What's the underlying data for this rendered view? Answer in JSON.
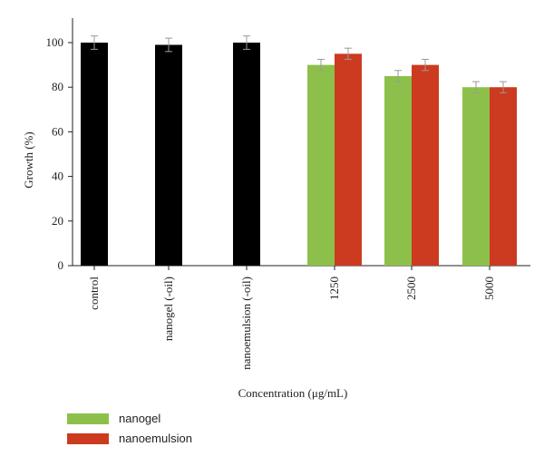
{
  "chart_data": {
    "type": "bar",
    "xlabel": "Concentration (μg/mL)",
    "ylabel": "Growth (%)",
    "ylim": [
      0,
      100
    ],
    "yticks": [
      0,
      20,
      40,
      60,
      80,
      100
    ],
    "categories": [
      "control",
      "nanogel (-oil)",
      "nanoemulsion (-oil)",
      "1250",
      "2500",
      "5000"
    ],
    "single_bars": [
      {
        "category": "control",
        "value": 100,
        "error": 3,
        "color": "#000000"
      },
      {
        "category": "nanogel (-oil)",
        "value": 99,
        "error": 3,
        "color": "#000000"
      },
      {
        "category": "nanoemulsion (-oil)",
        "value": 100,
        "error": 3,
        "color": "#000000"
      }
    ],
    "series": [
      {
        "name": "nanogel",
        "color": "#8dc04a",
        "values": [
          null,
          null,
          null,
          90,
          85,
          80
        ],
        "errors": [
          null,
          null,
          null,
          2.5,
          2.5,
          2.5
        ]
      },
      {
        "name": "nanoemulsion",
        "color": "#cc3a1f",
        "values": [
          null,
          null,
          null,
          95,
          90,
          80
        ],
        "errors": [
          null,
          null,
          null,
          2.5,
          2.5,
          2.5
        ]
      }
    ],
    "legend": {
      "placement": "bottom-left"
    }
  }
}
